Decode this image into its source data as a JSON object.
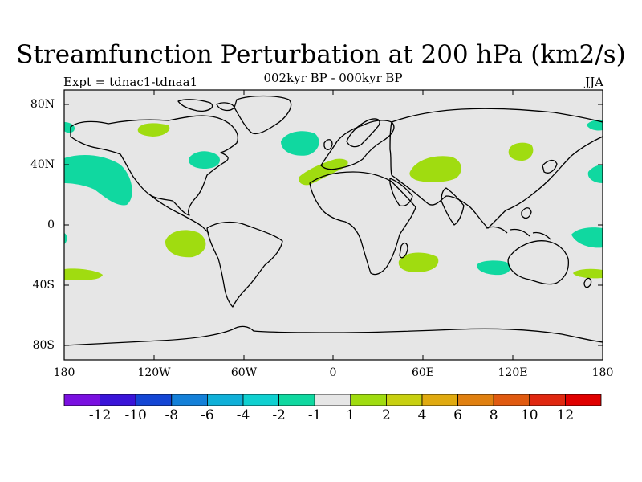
{
  "title": "Streamfunction Perturbation at 200 hPa (km2/s)",
  "subtitle": "002kyr BP - 000kyr BP",
  "left_label": "Expt = tdnac1-tdnaa1",
  "right_label": "JJA",
  "lat_labels": [
    "80N",
    "40N",
    "0",
    "40S",
    "80S"
  ],
  "lon_labels": [
    "180",
    "120W",
    "60W",
    "0",
    "60E",
    "120E",
    "180"
  ],
  "colorbar": {
    "colors": [
      "#7a10e0",
      "#3a14d8",
      "#1446d4",
      "#1480d8",
      "#10b0d8",
      "#10d0d0",
      "#10d8a0",
      "#e6e6e6",
      "#a0dc10",
      "#c8d010",
      "#e0aa10",
      "#e08010",
      "#e05a10",
      "#e02810",
      "#e00000"
    ],
    "labels": [
      "-12",
      "-10",
      "-8",
      "-6",
      "-4",
      "-2",
      "-1",
      "1",
      "2",
      "4",
      "6",
      "8",
      "10",
      "12"
    ]
  },
  "colors": {
    "ocean_background": "#e6e6e6",
    "negative_fill": "#10d8a0",
    "positive_fill": "#a0dc10"
  }
}
